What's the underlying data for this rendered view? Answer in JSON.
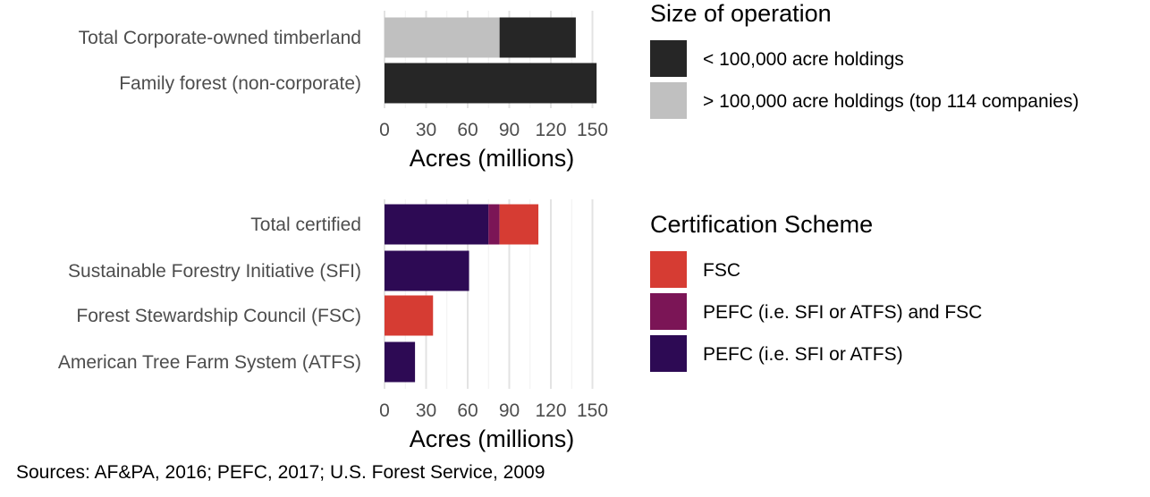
{
  "chart_data": [
    {
      "type": "bar",
      "orientation": "horizontal",
      "stacked": true,
      "categories": [
        "Total Corporate-owned timberland",
        "Family forest (non-corporate)"
      ],
      "series": [
        {
          "name": "> 100,000 acre holdings (top 114 companies)",
          "values": [
            83,
            0
          ],
          "color": "#c0c0c0"
        },
        {
          "name": "< 100,000 acre holdings",
          "values": [
            55,
            153
          ],
          "color": "#262626"
        }
      ],
      "xlabel": "Acres (millions)",
      "xlim": [
        0,
        155
      ],
      "xticks": [
        0,
        30,
        60,
        90,
        120,
        150
      ],
      "legend": {
        "title": "Size of operation",
        "placement": "right",
        "entries": [
          {
            "label": "< 100,000 acre holdings",
            "color": "#262626"
          },
          {
            "label": "> 100,000 acre holdings (top 114 companies)",
            "color": "#c0c0c0"
          }
        ]
      },
      "grid": true
    },
    {
      "type": "bar",
      "orientation": "horizontal",
      "stacked": true,
      "categories": [
        "Total certified",
        "Sustainable Forestry Initiative (SFI)",
        "Forest Stewardship Council (FSC)",
        "American Tree Farm System (ATFS)"
      ],
      "series": [
        {
          "name": "PEFC (i.e. SFI or ATFS)",
          "values": [
            75,
            61,
            0,
            22
          ],
          "color": "#2d0a54"
        },
        {
          "name": "PEFC (i.e. SFI or ATFS) and FSC",
          "values": [
            8,
            0,
            0,
            0
          ],
          "color": "#7b1556"
        },
        {
          "name": "FSC",
          "values": [
            28,
            0,
            35,
            0
          ],
          "color": "#d63c33"
        }
      ],
      "xlabel": "Acres (millions)",
      "xlim": [
        0,
        155
      ],
      "xticks": [
        0,
        30,
        60,
        90,
        120,
        150
      ],
      "legend": {
        "title": "Certification Scheme",
        "placement": "right",
        "entries": [
          {
            "label": "FSC",
            "color": "#d63c33"
          },
          {
            "label": "PEFC (i.e. SFI or ATFS) and FSC",
            "color": "#7b1556"
          },
          {
            "label": "PEFC (i.e. SFI or ATFS)",
            "color": "#2d0a54"
          }
        ]
      },
      "grid": true
    }
  ],
  "caption": "Sources: AF&PA, 2016; PEFC, 2017; U.S. Forest Service, 2009"
}
